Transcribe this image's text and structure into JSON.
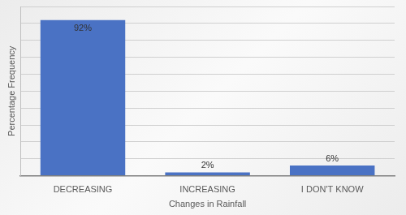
{
  "chart_data": {
    "type": "bar",
    "categories": [
      "DECREASING",
      "INCREASING",
      "I DON'T KNOW"
    ],
    "values": [
      92,
      2,
      6
    ],
    "value_labels": [
      "92%",
      "2%",
      "6%"
    ],
    "data_labels": true,
    "color": "#4a72c4",
    "x_label": "Changes in Rainfall",
    "y_label": "Percentage Frequency",
    "ylim": [
      0,
      100
    ],
    "yticks": [
      0,
      10,
      20,
      30,
      40,
      50,
      60,
      70,
      80,
      90,
      100
    ],
    "grid": true,
    "tick_labels": "x"
  }
}
